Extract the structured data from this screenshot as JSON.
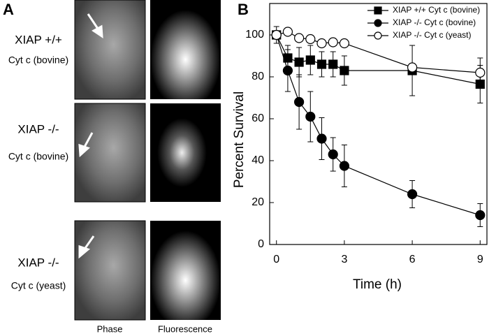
{
  "panel_a": {
    "label": "A",
    "rows": [
      {
        "line1": "XIAP +/+",
        "line2": "Cyt c (bovine)"
      },
      {
        "line1": "XIAP -/-",
        "line2": "Cyt c (bovine)"
      },
      {
        "line1": "XIAP -/-",
        "line2": "Cyt c (yeast)"
      }
    ],
    "columns": [
      "Phase",
      "Fluorescence"
    ]
  },
  "chart_data": {
    "type": "line",
    "label": "B",
    "xlabel": "Time (h)",
    "ylabel": "Percent Survival",
    "x": [
      0,
      0.5,
      1,
      1.5,
      2,
      2.5,
      3,
      6,
      9
    ],
    "xlim": [
      -0.3,
      9.3
    ],
    "xticks": [
      0,
      3,
      6,
      9
    ],
    "ylim": [
      0,
      115
    ],
    "yticks": [
      0,
      20,
      40,
      60,
      80,
      100
    ],
    "legend": "upper right",
    "series": [
      {
        "name": "XIAP +/+  Cyt c (bovine)",
        "color": "#000000",
        "marker": "square",
        "marker_fill": "#000000",
        "values": [
          100,
          89,
          87,
          88,
          86,
          86,
          83,
          83,
          76.5
        ],
        "errors": [
          4,
          6,
          7,
          7,
          6,
          6,
          7,
          12,
          9
        ]
      },
      {
        "name": "XIAP -/-  Cyt c (bovine)",
        "color": "#000000",
        "marker": "circle",
        "marker_fill": "#000000",
        "values": [
          100,
          83,
          68,
          61,
          50.5,
          43,
          37.5,
          24,
          14
        ],
        "errors": [
          0,
          10,
          13,
          12,
          10,
          8,
          10,
          6.5,
          5.5
        ]
      },
      {
        "name": "XIAP -/-  Cyt c (yeast)",
        "color": "#000000",
        "marker": "circle",
        "marker_fill": "#ffffff",
        "values": [
          100,
          101.5,
          98.5,
          98,
          96,
          96.5,
          96,
          84.5,
          82
        ],
        "errors": [
          0,
          0,
          0,
          0,
          0,
          0,
          0,
          0,
          7
        ]
      }
    ]
  }
}
